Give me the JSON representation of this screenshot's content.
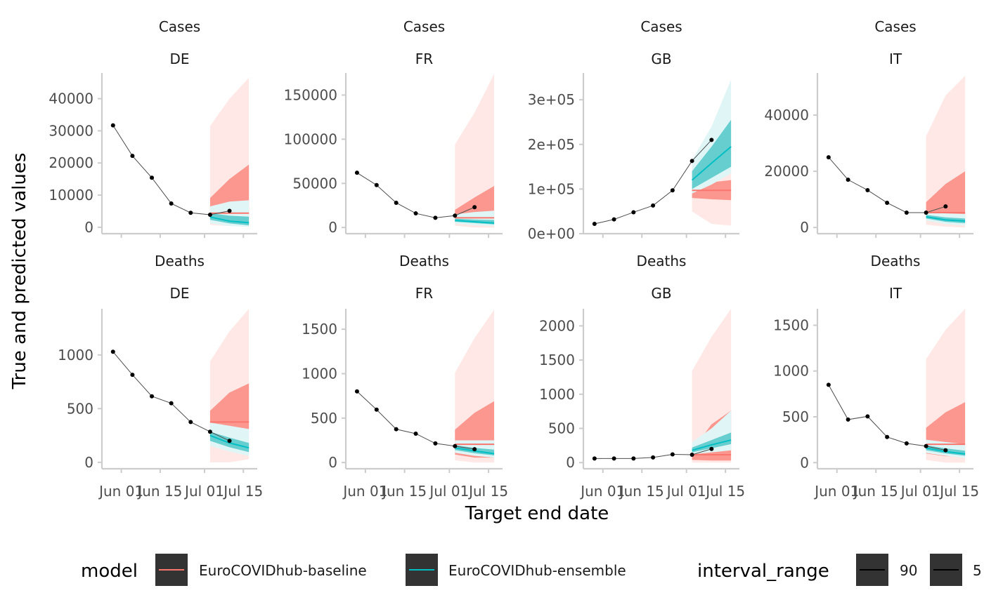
{
  "colors": {
    "baseline": "#F8766D",
    "ensemble": "#00BFC4",
    "baseline_outer": "#FFE8E5",
    "baseline_inner": "#FC978F",
    "ensemble_outer": "#E0F5F5",
    "ensemble_inner": "#67CECF",
    "truth": "#000000",
    "axis": "#cccccc"
  },
  "chart_data": [
    {
      "type": "line",
      "target": "Cases",
      "location": "DE",
      "strip_top": "Cases",
      "strip_bottom": "DE",
      "ylim": [
        -2000,
        48000
      ],
      "y_ticks": [
        {
          "v": 0,
          "label": "0"
        },
        {
          "v": 10000,
          "label": "10000"
        },
        {
          "v": 20000,
          "label": "20000"
        },
        {
          "v": 30000,
          "label": "30000"
        },
        {
          "v": 40000,
          "label": "40000"
        }
      ],
      "truth": [
        [
          "2021-05-29",
          31700
        ],
        [
          "2021-06-05",
          22200
        ],
        [
          "2021-06-12",
          15400
        ],
        [
          "2021-06-19",
          7400
        ],
        [
          "2021-06-26",
          4500
        ],
        [
          "2021-07-03",
          3900
        ],
        [
          "2021-07-10",
          5100
        ]
      ],
      "forecast_dates": [
        "2021-07-03",
        "2021-07-10",
        "2021-07-17"
      ],
      "baseline": {
        "q05": [
          700,
          400,
          300
        ],
        "q25": [
          2700,
          2600,
          2500
        ],
        "median": [
          4400,
          4400,
          4400
        ],
        "q75": [
          9100,
          15000,
          19500
        ],
        "q95": [
          31500,
          40000,
          46500
        ]
      },
      "ensemble": {
        "q05": [
          1200,
          400,
          100
        ],
        "q25": [
          2300,
          1200,
          600
        ],
        "median": [
          3200,
          1900,
          1400
        ],
        "q75": [
          4400,
          3600,
          3300
        ],
        "q95": [
          6500,
          8000,
          8400
        ]
      }
    },
    {
      "type": "line",
      "target": "Cases",
      "location": "FR",
      "strip_top": "Cases",
      "strip_bottom": "FR",
      "ylim": [
        -7000,
        175000
      ],
      "y_ticks": [
        {
          "v": 0,
          "label": "0"
        },
        {
          "v": 50000,
          "label": "50000"
        },
        {
          "v": 100000,
          "label": "100000"
        },
        {
          "v": 150000,
          "label": "150000"
        }
      ],
      "truth": [
        [
          "2021-05-29",
          62000
        ],
        [
          "2021-06-05",
          48000
        ],
        [
          "2021-06-12",
          28000
        ],
        [
          "2021-06-19",
          16000
        ],
        [
          "2021-06-26",
          11000
        ],
        [
          "2021-07-03",
          13500
        ],
        [
          "2021-07-10",
          23000
        ]
      ],
      "forecast_dates": [
        "2021-07-03",
        "2021-07-10",
        "2021-07-17"
      ],
      "baseline": {
        "q05": [
          2000,
          0,
          0
        ],
        "q25": [
          6000,
          5000,
          4500
        ],
        "median": [
          11000,
          11000,
          11000
        ],
        "q75": [
          20000,
          34000,
          47000
        ],
        "q95": [
          94000,
          130000,
          174000
        ]
      },
      "ensemble": {
        "q05": [
          4500,
          2500,
          1500
        ],
        "q25": [
          6500,
          5000,
          3500
        ],
        "median": [
          8000,
          6500,
          5000
        ],
        "q75": [
          10000,
          9000,
          8500
        ],
        "q95": [
          15000,
          17500,
          19000
        ]
      }
    },
    {
      "type": "line",
      "target": "Cases",
      "location": "GB",
      "strip_top": "Cases",
      "strip_bottom": "GB",
      "ylim": [
        0,
        360000
      ],
      "y_ticks": [
        {
          "v": 0,
          "label": "0e+00"
        },
        {
          "v": 100000,
          "label": "1e+05"
        },
        {
          "v": 200000,
          "label": "2e+05"
        },
        {
          "v": 300000,
          "label": "3e+05"
        }
      ],
      "truth": [
        [
          "2021-05-29",
          22000
        ],
        [
          "2021-06-05",
          32000
        ],
        [
          "2021-06-12",
          48000
        ],
        [
          "2021-06-19",
          63000
        ],
        [
          "2021-06-26",
          97000
        ],
        [
          "2021-07-03",
          163000
        ],
        [
          "2021-07-10",
          210000
        ]
      ],
      "forecast_dates": [
        "2021-07-03",
        "2021-07-10",
        "2021-07-17"
      ],
      "baseline": {
        "q05": [
          50000,
          22000,
          18000
        ],
        "q25": [
          80000,
          77000,
          75000
        ],
        "median": [
          97000,
          97000,
          97000
        ],
        "q75": [
          107000,
          115000,
          120000
        ],
        "q95": [
          150000,
          200000,
          240000
        ]
      },
      "ensemble": {
        "q05": [
          90000,
          110000,
          135000
        ],
        "q25": [
          100000,
          125000,
          150000
        ],
        "median": [
          120000,
          158000,
          195000
        ],
        "q75": [
          140000,
          195000,
          255000
        ],
        "q95": [
          165000,
          240000,
          345000
        ]
      }
    },
    {
      "type": "line",
      "target": "Cases",
      "location": "IT",
      "strip_top": "Cases",
      "strip_bottom": "IT",
      "ylim": [
        -2200,
        55000
      ],
      "y_ticks": [
        {
          "v": 0,
          "label": "0"
        },
        {
          "v": 20000,
          "label": "20000"
        },
        {
          "v": 40000,
          "label": "40000"
        }
      ],
      "truth": [
        [
          "2021-05-29",
          25000
        ],
        [
          "2021-06-05",
          17000
        ],
        [
          "2021-06-12",
          13300
        ],
        [
          "2021-06-19",
          8800
        ],
        [
          "2021-06-26",
          5300
        ],
        [
          "2021-07-03",
          5300
        ],
        [
          "2021-07-10",
          7500
        ]
      ],
      "forecast_dates": [
        "2021-07-03",
        "2021-07-10",
        "2021-07-17"
      ],
      "baseline": {
        "q05": [
          1000,
          300,
          0
        ],
        "q25": [
          3200,
          3000,
          2800
        ],
        "median": [
          5300,
          5300,
          5300
        ],
        "q75": [
          9000,
          15500,
          20000
        ],
        "q95": [
          32500,
          47000,
          54000
        ]
      },
      "ensemble": {
        "q05": [
          2500,
          1200,
          700
        ],
        "q25": [
          3200,
          2000,
          1500
        ],
        "median": [
          3800,
          2700,
          2300
        ],
        "q75": [
          4500,
          3600,
          3200
        ],
        "q95": [
          5700,
          5000,
          4800
        ]
      }
    },
    {
      "type": "line",
      "target": "Deaths",
      "location": "DE",
      "strip_top": "Deaths",
      "strip_bottom": "DE",
      "ylim": [
        -60,
        1430
      ],
      "y_ticks": [
        {
          "v": 0,
          "label": "0"
        },
        {
          "v": 500,
          "label": "500"
        },
        {
          "v": 1000,
          "label": "1000"
        }
      ],
      "truth": [
        [
          "2021-05-29",
          1030
        ],
        [
          "2021-06-05",
          815
        ],
        [
          "2021-06-12",
          615
        ],
        [
          "2021-06-19",
          550
        ],
        [
          "2021-06-26",
          375
        ],
        [
          "2021-07-03",
          285
        ],
        [
          "2021-07-10",
          200
        ]
      ],
      "forecast_dates": [
        "2021-07-03",
        "2021-07-10",
        "2021-07-17"
      ],
      "baseline": {
        "q05": [
          0,
          0,
          30
        ],
        "q25": [
          280,
          280,
          310
        ],
        "median": [
          375,
          375,
          375
        ],
        "q75": [
          480,
          650,
          735
        ],
        "q95": [
          940,
          1220,
          1430
        ]
      },
      "ensemble": {
        "q05": [
          155,
          100,
          60
        ],
        "q25": [
          200,
          140,
          95
        ],
        "median": [
          250,
          180,
          135
        ],
        "q75": [
          285,
          230,
          180
        ],
        "q95": [
          370,
          340,
          310
        ]
      }
    },
    {
      "type": "line",
      "target": "Deaths",
      "location": "FR",
      "strip_top": "Deaths",
      "strip_bottom": "FR",
      "ylim": [
        -70,
        1730
      ],
      "y_ticks": [
        {
          "v": 0,
          "label": "0"
        },
        {
          "v": 500,
          "label": "500"
        },
        {
          "v": 1000,
          "label": "1000"
        },
        {
          "v": 1500,
          "label": "1500"
        }
      ],
      "truth": [
        [
          "2021-05-29",
          800
        ],
        [
          "2021-06-05",
          595
        ],
        [
          "2021-06-12",
          375
        ],
        [
          "2021-06-19",
          325
        ],
        [
          "2021-06-26",
          215
        ],
        [
          "2021-07-03",
          185
        ],
        [
          "2021-07-10",
          150
        ]
      ],
      "forecast_dates": [
        "2021-07-03",
        "2021-07-10",
        "2021-07-17"
      ],
      "baseline": {
        "q05": [
          25,
          0,
          0
        ],
        "q25": [
          90,
          55,
          55
        ],
        "median": [
          205,
          205,
          205
        ],
        "q75": [
          370,
          560,
          690
        ],
        "q95": [
          1010,
          1400,
          1720
        ]
      },
      "ensemble": {
        "q05": [
          110,
          75,
          55
        ],
        "q25": [
          140,
          105,
          80
        ],
        "median": [
          165,
          130,
          100
        ],
        "q75": [
          195,
          165,
          145
        ],
        "q95": [
          250,
          250,
          250
        ]
      }
    },
    {
      "type": "line",
      "target": "Deaths",
      "location": "GB",
      "strip_top": "Deaths",
      "strip_bottom": "GB",
      "ylim": [
        -90,
        2250
      ],
      "y_ticks": [
        {
          "v": 0,
          "label": "0"
        },
        {
          "v": 500,
          "label": "500"
        },
        {
          "v": 1000,
          "label": "1000"
        },
        {
          "v": 1500,
          "label": "1500"
        },
        {
          "v": 2000,
          "label": "2000"
        }
      ],
      "truth": [
        [
          "2021-05-29",
          60
        ],
        [
          "2021-06-05",
          60
        ],
        [
          "2021-06-12",
          60
        ],
        [
          "2021-06-19",
          75
        ],
        [
          "2021-06-26",
          120
        ],
        [
          "2021-07-03",
          115
        ],
        [
          "2021-07-10",
          200
        ]
      ],
      "forecast_dates": [
        "2021-07-03",
        "2021-07-10",
        "2021-07-17"
      ],
      "baseline": {
        "q05": [
          0,
          0,
          0
        ],
        "q25": [
          40,
          30,
          30
        ],
        "median": [
          115,
          115,
          115
        ],
        "q75": [
          180,
          560,
          760
        ],
        "q95": [
          1340,
          1840,
          2250
        ]
      },
      "ensemble": {
        "q05": [
          120,
          150,
          180
        ],
        "q25": [
          150,
          210,
          270
        ],
        "median": [
          180,
          260,
          330
        ],
        "q75": [
          220,
          330,
          440
        ],
        "q95": [
          300,
          500,
          760
        ]
      }
    },
    {
      "type": "line",
      "target": "Deaths",
      "location": "IT",
      "strip_top": "Deaths",
      "strip_bottom": "IT",
      "ylim": [
        -67,
        1680
      ],
      "y_ticks": [
        {
          "v": 0,
          "label": "0"
        },
        {
          "v": 500,
          "label": "500"
        },
        {
          "v": 1000,
          "label": "1000"
        },
        {
          "v": 1500,
          "label": "1500"
        }
      ],
      "truth": [
        [
          "2021-05-29",
          850
        ],
        [
          "2021-06-05",
          470
        ],
        [
          "2021-06-12",
          505
        ],
        [
          "2021-06-19",
          280
        ],
        [
          "2021-06-26",
          210
        ],
        [
          "2021-07-03",
          180
        ],
        [
          "2021-07-10",
          135
        ]
      ],
      "forecast_dates": [
        "2021-07-03",
        "2021-07-10",
        "2021-07-17"
      ],
      "baseline": {
        "q05": [
          30,
          0,
          0
        ],
        "q25": [
          100,
          70,
          65
        ],
        "median": [
          200,
          200,
          200
        ],
        "q75": [
          380,
          550,
          660
        ],
        "q95": [
          1130,
          1450,
          1680
        ]
      },
      "ensemble": {
        "q05": [
          105,
          75,
          50
        ],
        "q25": [
          135,
          100,
          75
        ],
        "median": [
          160,
          120,
          95
        ],
        "q75": [
          190,
          155,
          130
        ],
        "q95": [
          250,
          225,
          200
        ]
      }
    }
  ],
  "x_axis": {
    "title": "Target end date",
    "range": [
      "2021-05-25",
      "2021-07-20"
    ],
    "ticks": [
      {
        "date": "2021-06-01",
        "label": "Jun 01"
      },
      {
        "date": "2021-06-15",
        "label": "Jun 15"
      },
      {
        "date": "2021-07-01",
        "label": "Jul 01"
      },
      {
        "date": "2021-07-15",
        "label": "Jul 15"
      }
    ]
  },
  "y_axis": {
    "title": "True and predicted values"
  },
  "legend": {
    "model_title": "model",
    "models": [
      {
        "label": "EuroCOVIDhub-baseline",
        "color": "#F8766D"
      },
      {
        "label": "EuroCOVIDhub-ensemble",
        "color": "#00BFC4"
      }
    ],
    "interval_title": "interval_range",
    "intervals": [
      "90",
      "5"
    ]
  }
}
